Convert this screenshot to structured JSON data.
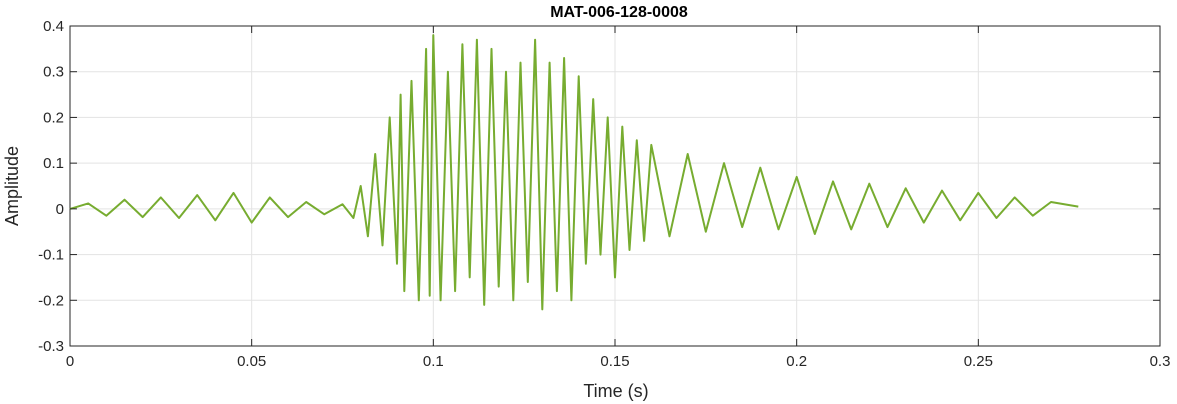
{
  "chart_data": {
    "type": "line",
    "title": "MAT-006-128-0008",
    "xlabel": "Time (s)",
    "ylabel": "Amplitude",
    "xlim": [
      0,
      0.3
    ],
    "ylim": [
      -0.3,
      0.4
    ],
    "xticks": [
      0,
      0.05,
      0.1,
      0.15,
      0.2,
      0.25,
      0.3
    ],
    "xtick_labels": [
      "0",
      "0.05",
      "0.1",
      "0.15",
      "0.2",
      "0.25",
      "0.3"
    ],
    "yticks": [
      -0.3,
      -0.2,
      -0.1,
      0,
      0.1,
      0.2,
      0.3,
      0.4
    ],
    "ytick_labels": [
      "-0.3",
      "-0.2",
      "-0.1",
      "0",
      "0.1",
      "0.2",
      "0.3",
      "0.4"
    ],
    "grid": true,
    "line_color": "#77AC30",
    "series": [
      {
        "x": [
          0.0,
          0.005,
          0.01,
          0.015,
          0.02,
          0.025,
          0.03,
          0.035,
          0.04,
          0.045,
          0.05,
          0.055,
          0.06,
          0.065,
          0.07,
          0.075,
          0.078,
          0.08,
          0.082,
          0.084,
          0.086,
          0.088,
          0.09,
          0.091,
          0.092,
          0.094,
          0.096,
          0.098,
          0.099,
          0.1,
          0.102,
          0.104,
          0.106,
          0.108,
          0.11,
          0.112,
          0.114,
          0.116,
          0.118,
          0.12,
          0.122,
          0.124,
          0.126,
          0.128,
          0.13,
          0.132,
          0.134,
          0.136,
          0.138,
          0.14,
          0.142,
          0.144,
          0.146,
          0.148,
          0.15,
          0.152,
          0.154,
          0.156,
          0.158,
          0.16,
          0.165,
          0.17,
          0.175,
          0.18,
          0.185,
          0.19,
          0.195,
          0.2,
          0.205,
          0.21,
          0.215,
          0.22,
          0.225,
          0.23,
          0.235,
          0.24,
          0.245,
          0.25,
          0.255,
          0.26,
          0.265,
          0.27,
          0.2775
        ],
        "y": [
          0.0,
          0.012,
          -0.015,
          0.02,
          -0.018,
          0.025,
          -0.02,
          0.03,
          -0.025,
          0.035,
          -0.03,
          0.025,
          -0.018,
          0.015,
          -0.012,
          0.01,
          -0.02,
          0.05,
          -0.06,
          0.12,
          -0.08,
          0.2,
          -0.12,
          0.25,
          -0.18,
          0.28,
          -0.2,
          0.35,
          -0.19,
          0.38,
          -0.2,
          0.3,
          -0.18,
          0.36,
          -0.15,
          0.37,
          -0.21,
          0.35,
          -0.17,
          0.3,
          -0.2,
          0.32,
          -0.16,
          0.37,
          -0.22,
          0.32,
          -0.18,
          0.33,
          -0.2,
          0.29,
          -0.12,
          0.24,
          -0.1,
          0.2,
          -0.15,
          0.18,
          -0.09,
          0.15,
          -0.07,
          0.14,
          -0.06,
          0.12,
          -0.05,
          0.1,
          -0.04,
          0.09,
          -0.045,
          0.07,
          -0.055,
          0.06,
          -0.045,
          0.055,
          -0.04,
          0.045,
          -0.03,
          0.04,
          -0.025,
          0.035,
          -0.02,
          0.025,
          -0.015,
          0.015,
          0.005
        ]
      }
    ]
  }
}
